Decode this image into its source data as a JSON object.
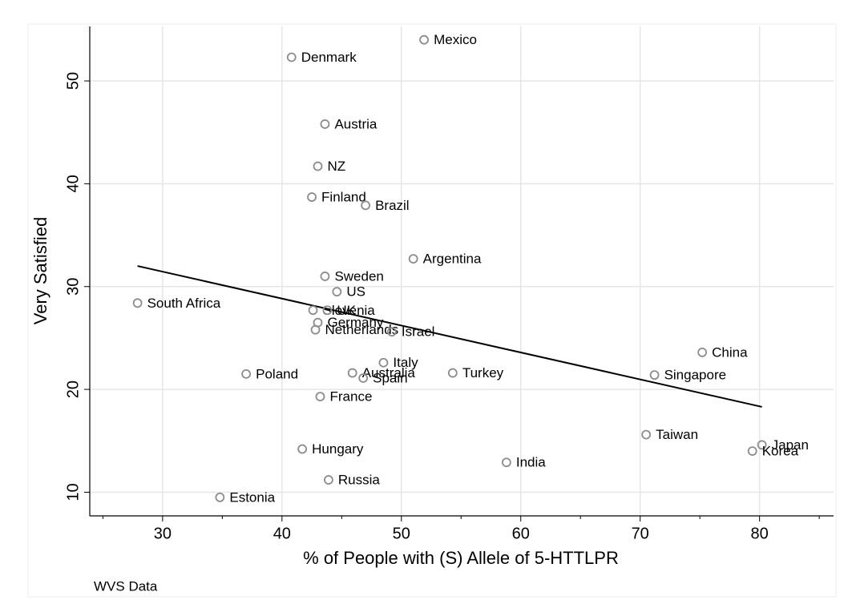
{
  "chart_data": {
    "type": "scatter",
    "xlabel": "% of People with (S) Allele of 5-HTTLPR",
    "ylabel": "Very Satisfied",
    "note": "WVS Data",
    "point_labels": [
      "Mexico",
      "Denmark",
      "Austria",
      "NZ",
      "Finland",
      "Brazil",
      "Argentina",
      "Sweden",
      "US",
      "South Africa",
      "Slovenia",
      "UK",
      "Germany",
      "Netherlands",
      "Israel",
      "China",
      "Italy",
      "Poland",
      "Australia",
      "Spain",
      "Turkey",
      "Singapore",
      "France",
      "Taiwan",
      "Japan",
      "Korea",
      "Hungary",
      "India",
      "Russia",
      "Estonia"
    ],
    "x": [
      51.9,
      40.8,
      43.6,
      43.0,
      42.5,
      47.0,
      51.0,
      43.6,
      44.6,
      27.9,
      42.6,
      43.8,
      43.0,
      42.8,
      49.2,
      75.2,
      48.5,
      37.0,
      45.9,
      46.8,
      54.3,
      71.2,
      43.2,
      70.5,
      80.2,
      79.4,
      41.7,
      58.8,
      43.9,
      34.8
    ],
    "y": [
      54.0,
      52.3,
      45.8,
      41.7,
      38.7,
      37.9,
      32.7,
      31.0,
      29.5,
      28.4,
      27.7,
      27.7,
      26.5,
      25.8,
      25.6,
      23.6,
      22.6,
      21.5,
      21.6,
      21.1,
      21.6,
      21.4,
      19.3,
      15.6,
      14.6,
      14.0,
      14.2,
      12.9,
      11.2,
      9.5
    ],
    "marker_color": "#8c8c8c",
    "fit_line": {
      "x": [
        27.9,
        80.2
      ],
      "y": [
        32.0,
        18.3
      ],
      "color": "#000000"
    },
    "xlim": [
      23.9,
      86.2
    ],
    "ylim": [
      7.7,
      55.3
    ],
    "xticks": [
      30,
      40,
      50,
      60,
      70,
      80
    ],
    "xminorticks": [
      25,
      35,
      45,
      55,
      65,
      75,
      85
    ],
    "yticks": [
      10,
      20,
      30,
      40,
      50
    ],
    "grid": true
  }
}
